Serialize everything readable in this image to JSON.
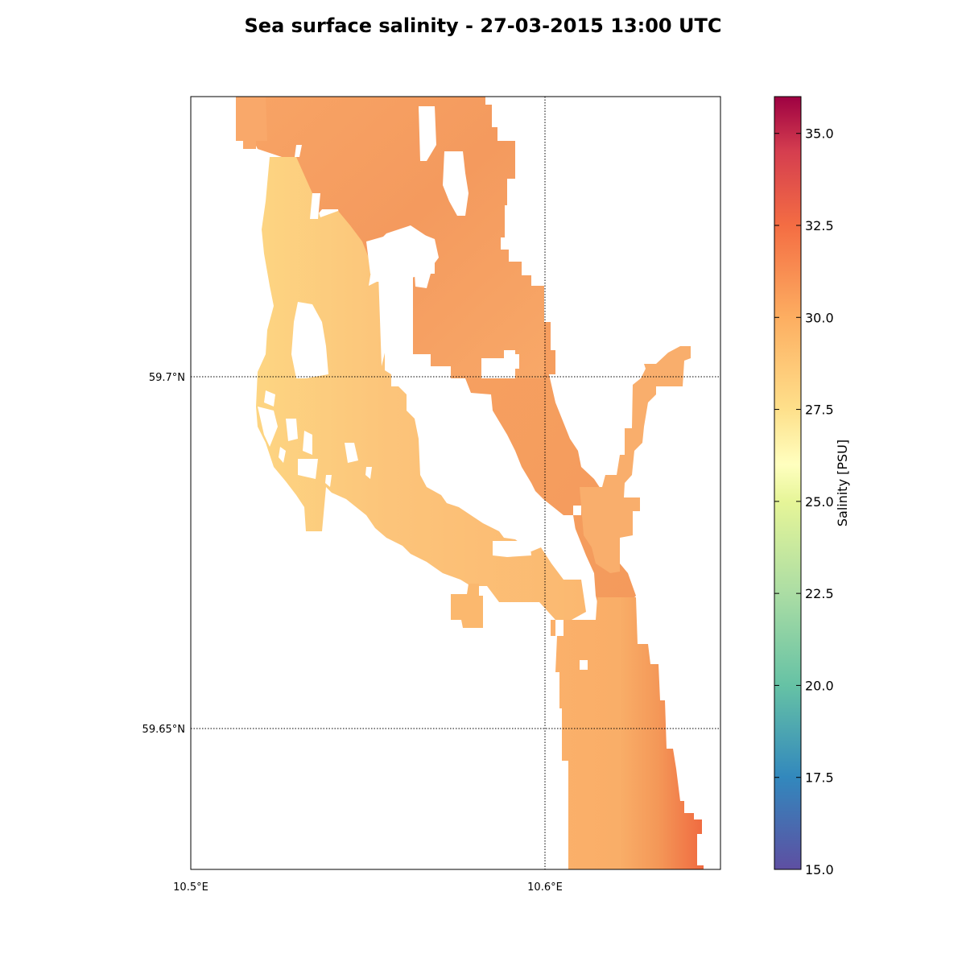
{
  "title": "Sea surface salinity - 27-03-2015 13:00 UTC",
  "map": {
    "lon_range": [
      10.5,
      10.65
    ],
    "lat_range": [
      59.63,
      59.74
    ],
    "meridians": [
      10.5,
      10.6
    ],
    "parallels": [
      59.65,
      59.7
    ],
    "gridline_style": "dotted",
    "lon_labels": [
      "10.5°E",
      "10.6°E"
    ],
    "lat_labels": [
      "59.7°N",
      "59.65°N"
    ],
    "field": "sea surface salinity",
    "colormap": "Spectral_r",
    "value_ranges": {
      "western_arm_min": 27.5,
      "western_arm_typical": 28.8,
      "northern_basin": 29.8,
      "main_channel": 30.2,
      "southeast_max": 31.8
    }
  },
  "colorbar": {
    "label": "Salinity [PSU]",
    "min": 15.0,
    "max": 36.0,
    "ticks": [
      "15.0",
      "17.5",
      "20.0",
      "22.5",
      "25.0",
      "27.5",
      "30.0",
      "32.5",
      "35.0"
    ],
    "colors": [
      "#5e4fa2",
      "#3288bd",
      "#66c2a5",
      "#abdda4",
      "#e6f598",
      "#ffffbf",
      "#fee08b",
      "#fdae61",
      "#f46d43",
      "#d53e4f",
      "#9e0142"
    ]
  }
}
